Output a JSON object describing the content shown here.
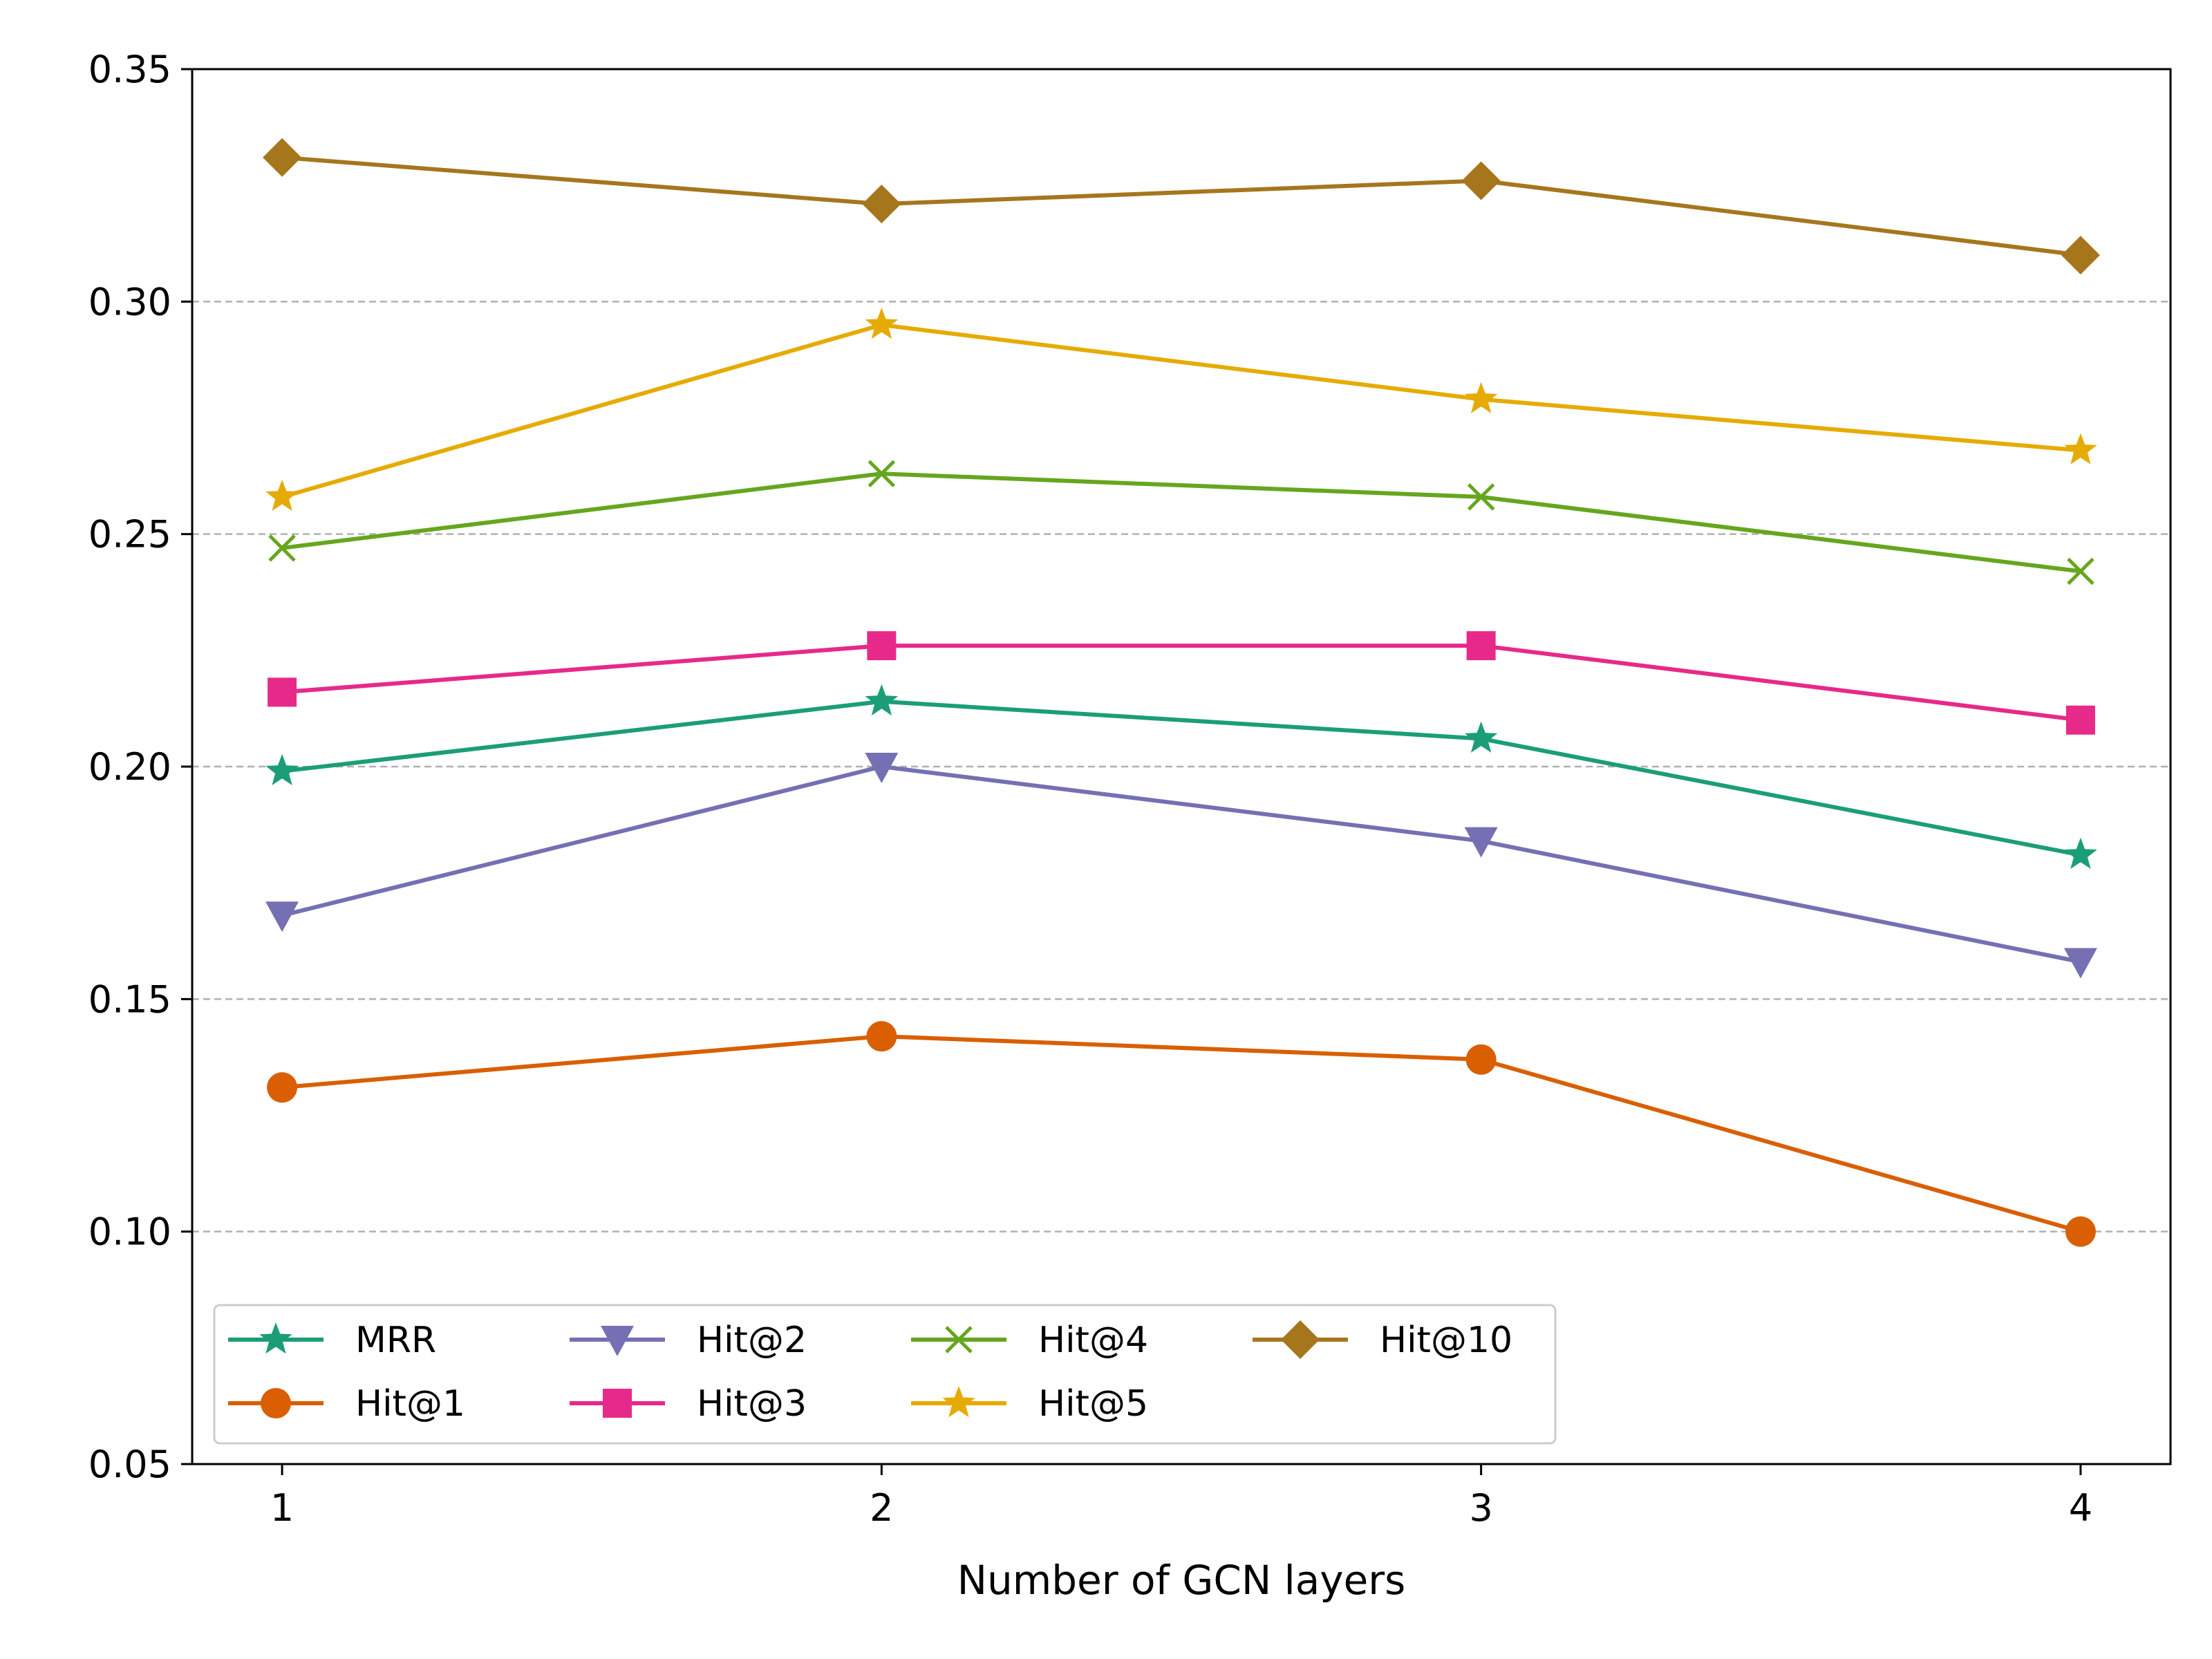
{
  "chart_data": {
    "type": "line",
    "title": "",
    "xlabel": "Number of GCN layers",
    "ylabel": "",
    "x": [
      1,
      2,
      3,
      4
    ],
    "xticks": [
      "1",
      "2",
      "3",
      "4"
    ],
    "xlim": [
      0.85,
      4.15
    ],
    "ylim": [
      0.05,
      0.35
    ],
    "yticks": [
      "0.05",
      "0.10",
      "0.15",
      "0.20",
      "0.25",
      "0.30",
      "0.35"
    ],
    "grid": "horizontal dashed",
    "legend_placement": "lower-left",
    "series": [
      {
        "name": "MRR",
        "color": "#1b9e77",
        "marker": "star",
        "values": [
          0.199,
          0.214,
          0.206,
          0.181
        ]
      },
      {
        "name": "Hit@1",
        "color": "#d95f02",
        "marker": "circle",
        "values": [
          0.131,
          0.142,
          0.137,
          0.1
        ]
      },
      {
        "name": "Hit@2",
        "color": "#7570b3",
        "marker": "triangle-down",
        "values": [
          0.168,
          0.2,
          0.184,
          0.158
        ]
      },
      {
        "name": "Hit@3",
        "color": "#e7298a",
        "marker": "square",
        "values": [
          0.216,
          0.226,
          0.226,
          0.21
        ]
      },
      {
        "name": "Hit@4",
        "color": "#66a61e",
        "marker": "x",
        "values": [
          0.247,
          0.263,
          0.258,
          0.242
        ]
      },
      {
        "name": "Hit@5",
        "color": "#e6ab02",
        "marker": "star",
        "values": [
          0.258,
          0.295,
          0.279,
          0.268
        ]
      },
      {
        "name": "Hit@10",
        "color": "#a6761d",
        "marker": "diamond",
        "values": [
          0.331,
          0.321,
          0.326,
          0.31
        ]
      }
    ]
  }
}
